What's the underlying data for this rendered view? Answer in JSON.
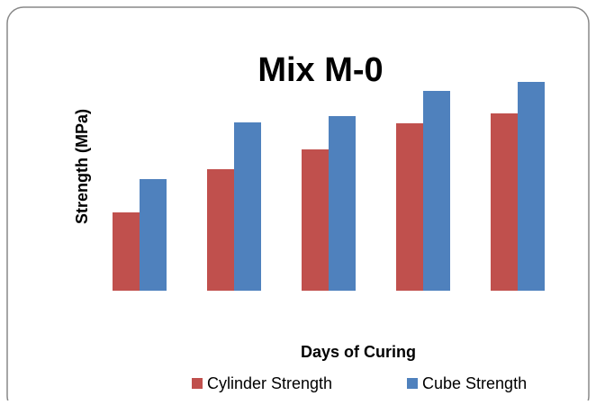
{
  "chart_data": {
    "type": "bar",
    "title": "Mix M-0",
    "x_label": "Days of Curing",
    "y_label": "Strength (MPa)",
    "categories": [
      null,
      null,
      null,
      null,
      null
    ],
    "series": [
      {
        "name": "Cylinder Strength",
        "color": "#c0504d",
        "values": [
          8.7,
          13.5,
          15.7,
          18.6,
          19.7
        ]
      },
      {
        "name": "Cube Strength",
        "color": "#4f81bd",
        "values": [
          12.4,
          18.7,
          19.4,
          22.2,
          23.2
        ]
      }
    ],
    "ylim": [
      0,
      25
    ],
    "legend": "bottom"
  }
}
